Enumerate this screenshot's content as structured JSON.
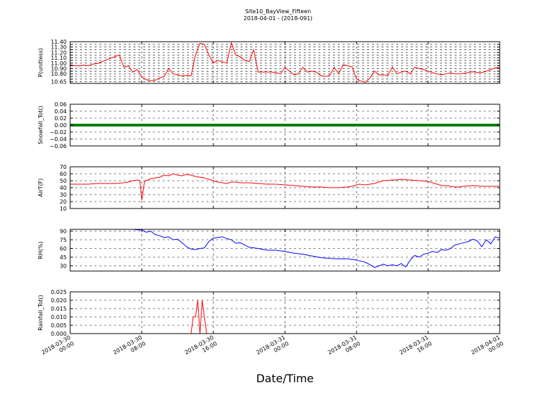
{
  "figure": {
    "title_line1": "Site10_BayView_Fifteen",
    "title_line2": "2018-04-01 - (2018-091)",
    "xlabel": "Date/Time"
  },
  "chart_data": {
    "type": "line",
    "x_range": [
      "2018-03-30 00:00",
      "2018-04-01 00:00"
    ],
    "x_ticks": [
      {
        "line1": "2018-03-30",
        "line2": "00:00",
        "hour": 0
      },
      {
        "line1": "2018-03-30",
        "line2": "08:00",
        "hour": 8
      },
      {
        "line1": "2018-03-30",
        "line2": "16:00",
        "hour": 16
      },
      {
        "line1": "2018-03-31",
        "line2": "00:00",
        "hour": 24
      },
      {
        "line1": "2018-03-31",
        "line2": "08:00",
        "hour": 32
      },
      {
        "line1": "2018-03-31",
        "line2": "16:00",
        "hour": 40
      },
      {
        "line1": "2018-04-01",
        "line2": "00:00",
        "hour": 48
      }
    ],
    "grid": true,
    "panels": [
      {
        "ylabel": "P(unitless)",
        "color": "#ff0000",
        "ylim": [
          10.62,
          11.4
        ],
        "yticks": [
          11.4,
          11.35,
          11.3,
          11.25,
          11.2,
          11.15,
          11.1,
          11.05,
          11.0,
          10.95,
          10.9,
          10.85,
          10.8,
          10.75,
          10.7,
          10.65
        ],
        "yticklabels": [
          "11.40",
          "",
          "11.30",
          "",
          "11.20",
          "",
          "11.10",
          "",
          "11.00",
          "",
          "10.90",
          "",
          "10.80",
          "",
          "",
          "10.65"
        ],
        "series": [
          {
            "x": [
              0,
              0.5,
              1,
              1.5,
              2,
              2.5,
              3,
              3.5,
              4,
              4.5,
              5,
              5.5,
              6,
              6.5,
              7,
              7.5,
              8,
              8.5,
              9,
              9.5,
              10,
              10.5,
              11,
              11.5,
              12,
              12.5,
              13,
              13.5,
              14,
              14.5,
              15,
              15.5,
              16,
              16.5,
              17,
              17.5,
              18,
              18.5,
              19,
              19.5,
              20,
              20.5,
              21,
              21.5,
              22,
              22.5,
              23,
              23.5,
              24,
              24.5,
              25,
              25.5,
              26,
              26.5,
              27,
              27.5,
              28,
              28.5,
              29,
              29.5,
              30,
              30.5,
              31,
              31.5,
              32,
              32.5,
              33,
              33.5,
              34,
              34.5,
              35,
              35.5,
              36,
              36.5,
              37,
              37.5,
              38,
              38.5,
              39,
              39.5,
              40,
              40.5,
              41,
              41.5,
              42,
              42.5,
              43,
              43.5,
              44,
              44.5,
              45,
              45.5,
              46,
              46.5,
              47,
              47.5,
              48
            ],
            "values": [
              10.97,
              10.95,
              10.95,
              10.96,
              10.95,
              10.98,
              10.99,
              11.02,
              11.06,
              11.09,
              11.12,
              11.15,
              10.92,
              10.95,
              10.83,
              10.88,
              10.74,
              10.69,
              10.67,
              10.68,
              10.72,
              10.75,
              10.9,
              10.8,
              10.78,
              10.76,
              10.77,
              10.76,
              11.15,
              11.37,
              11.35,
              11.15,
              11.0,
              11.05,
              11.02,
              11.0,
              11.38,
              11.15,
              11.12,
              11.05,
              11.03,
              11.25,
              10.83,
              10.83,
              10.83,
              10.83,
              10.82,
              10.8,
              10.92,
              10.85,
              10.78,
              10.8,
              10.92,
              10.83,
              10.85,
              10.83,
              10.77,
              10.75,
              10.77,
              10.92,
              10.8,
              10.97,
              10.95,
              10.93,
              10.7,
              10.66,
              10.64,
              10.72,
              10.85,
              10.78,
              10.78,
              10.77,
              10.93,
              10.8,
              10.83,
              10.85,
              10.8,
              10.92,
              10.9,
              10.88,
              10.85,
              10.82,
              10.8,
              10.78,
              10.8,
              10.82,
              10.8,
              10.8,
              10.81,
              10.82,
              10.84,
              10.82,
              10.82,
              10.85,
              10.88,
              10.91,
              10.92
            ]
          }
        ]
      },
      {
        "ylabel": "Snowfall_Tot()",
        "color": "#007f00",
        "ylim": [
          -0.06,
          0.06
        ],
        "yticks": [
          0.06,
          0.04,
          0.02,
          0.0,
          -0.02,
          -0.04,
          -0.06
        ],
        "yticklabels": [
          "0.06",
          "0.04",
          "0.02",
          "0.00",
          "−0.02",
          "−0.04",
          "−0.06"
        ],
        "series": [
          {
            "x": [
              0,
              48
            ],
            "values": [
              0,
              0
            ]
          }
        ]
      },
      {
        "ylabel": "AirT(F)",
        "color": "#ff0000",
        "ylim": [
          10,
          70
        ],
        "yticks": [
          70,
          60,
          50,
          40,
          30,
          20,
          10
        ],
        "yticklabels": [
          "70",
          "60",
          "50",
          "40",
          "30",
          "20",
          "10"
        ],
        "series": [
          {
            "x": [
              0,
              1,
              2,
              3,
              4,
              5,
              6,
              6.5,
              7,
              7.5,
              7.8,
              8,
              8.3,
              9,
              10,
              10.5,
              11,
              11.5,
              12,
              12.5,
              13,
              13.5,
              14,
              14.5,
              15,
              15.5,
              16,
              16.5,
              17,
              17.5,
              18,
              18.5,
              19,
              20,
              21,
              22,
              23,
              24,
              25,
              26,
              27,
              28,
              29,
              30,
              31,
              31.5,
              31.8,
              32,
              32.3,
              33,
              34,
              35,
              36,
              36.5,
              37,
              38,
              39,
              40,
              40.5,
              41,
              41.5,
              42,
              42.5,
              43,
              43.5,
              44,
              45,
              46,
              47,
              48
            ],
            "values": [
              45,
              45,
              45,
              46,
              46,
              46,
              47,
              48,
              50,
              51,
              50,
              22,
              49,
              53,
              55,
              58,
              57,
              60,
              58,
              57,
              59,
              58,
              56,
              55,
              54,
              52,
              50,
              48,
              47,
              46,
              48,
              48,
              47,
              47,
              46,
              45,
              45,
              44,
              43,
              42,
              41,
              41,
              40,
              40,
              41,
              42,
              43,
              44,
              45,
              44,
              46,
              50,
              51,
              51,
              52,
              51,
              50,
              49,
              47,
              45,
              43,
              43,
              42,
              41,
              41,
              42,
              43,
              42,
              42,
              42
            ]
          }
        ]
      },
      {
        "ylabel": "RH(%)",
        "color": "#0000ff",
        "ylim": [
          21,
          93
        ],
        "yticks": [
          90,
          75,
          60,
          45,
          30
        ],
        "yticklabels": [
          "90",
          "75",
          "60",
          "45",
          "30"
        ],
        "series": [
          {
            "x": [
              3,
              4,
              5,
              6,
              6.5,
              7,
              7.5,
              8,
              8.5,
              9,
              9.5,
              10,
              10.5,
              11,
              11.5,
              12,
              12.5,
              13,
              13.5,
              14,
              14.5,
              15,
              15.5,
              16,
              16.5,
              17,
              17.5,
              18,
              18.5,
              19,
              20,
              21,
              22,
              23,
              24,
              25,
              26,
              27,
              28,
              29,
              30,
              31,
              32,
              32.5,
              33,
              33.5,
              34,
              34.5,
              35,
              35.5,
              36,
              36.5,
              37,
              37.5,
              38,
              38.5,
              39,
              39.5,
              40,
              40.5,
              41,
              41.5,
              42,
              42.5,
              43,
              43.5,
              44,
              44.5,
              45,
              45.5,
              46,
              46.5,
              47,
              47.5,
              48
            ],
            "values": [
              95,
              95,
              94,
              95,
              93,
              93,
              92,
              92,
              88,
              90,
              84,
              82,
              79,
              80,
              75,
              76,
              70,
              63,
              59,
              58,
              60,
              61,
              72,
              78,
              79,
              80,
              77,
              75,
              69,
              70,
              62,
              60,
              57,
              57,
              55,
              52,
              50,
              47,
              44,
              43,
              42,
              42,
              40,
              38,
              36,
              32,
              27,
              30,
              33,
              30,
              32,
              30,
              34,
              28,
              40,
              48,
              45,
              50,
              52,
              55,
              53,
              58,
              57,
              60,
              66,
              68,
              70,
              72,
              76,
              73,
              63,
              75,
              68,
              80,
              78
            ]
          }
        ]
      },
      {
        "ylabel": "Rainfall_Tot()",
        "color": "#ff0000",
        "ylim": [
          0,
          0.025
        ],
        "yticks": [
          0.025,
          0.02,
          0.015,
          0.01,
          0.005,
          0.0
        ],
        "yticklabels": [
          "0.025",
          "0.020",
          "0.015",
          "0.010",
          "0.005",
          "0.000"
        ],
        "series": [
          {
            "x": [
              0,
              13.5,
              13.75,
              14,
              14.25,
              14.5,
              14.75,
              15,
              15.25,
              48
            ],
            "values": [
              0,
              0,
              0.01,
              0.01,
              0.02,
              0,
              0.02,
              0.01,
              0,
              0
            ]
          }
        ]
      }
    ]
  }
}
